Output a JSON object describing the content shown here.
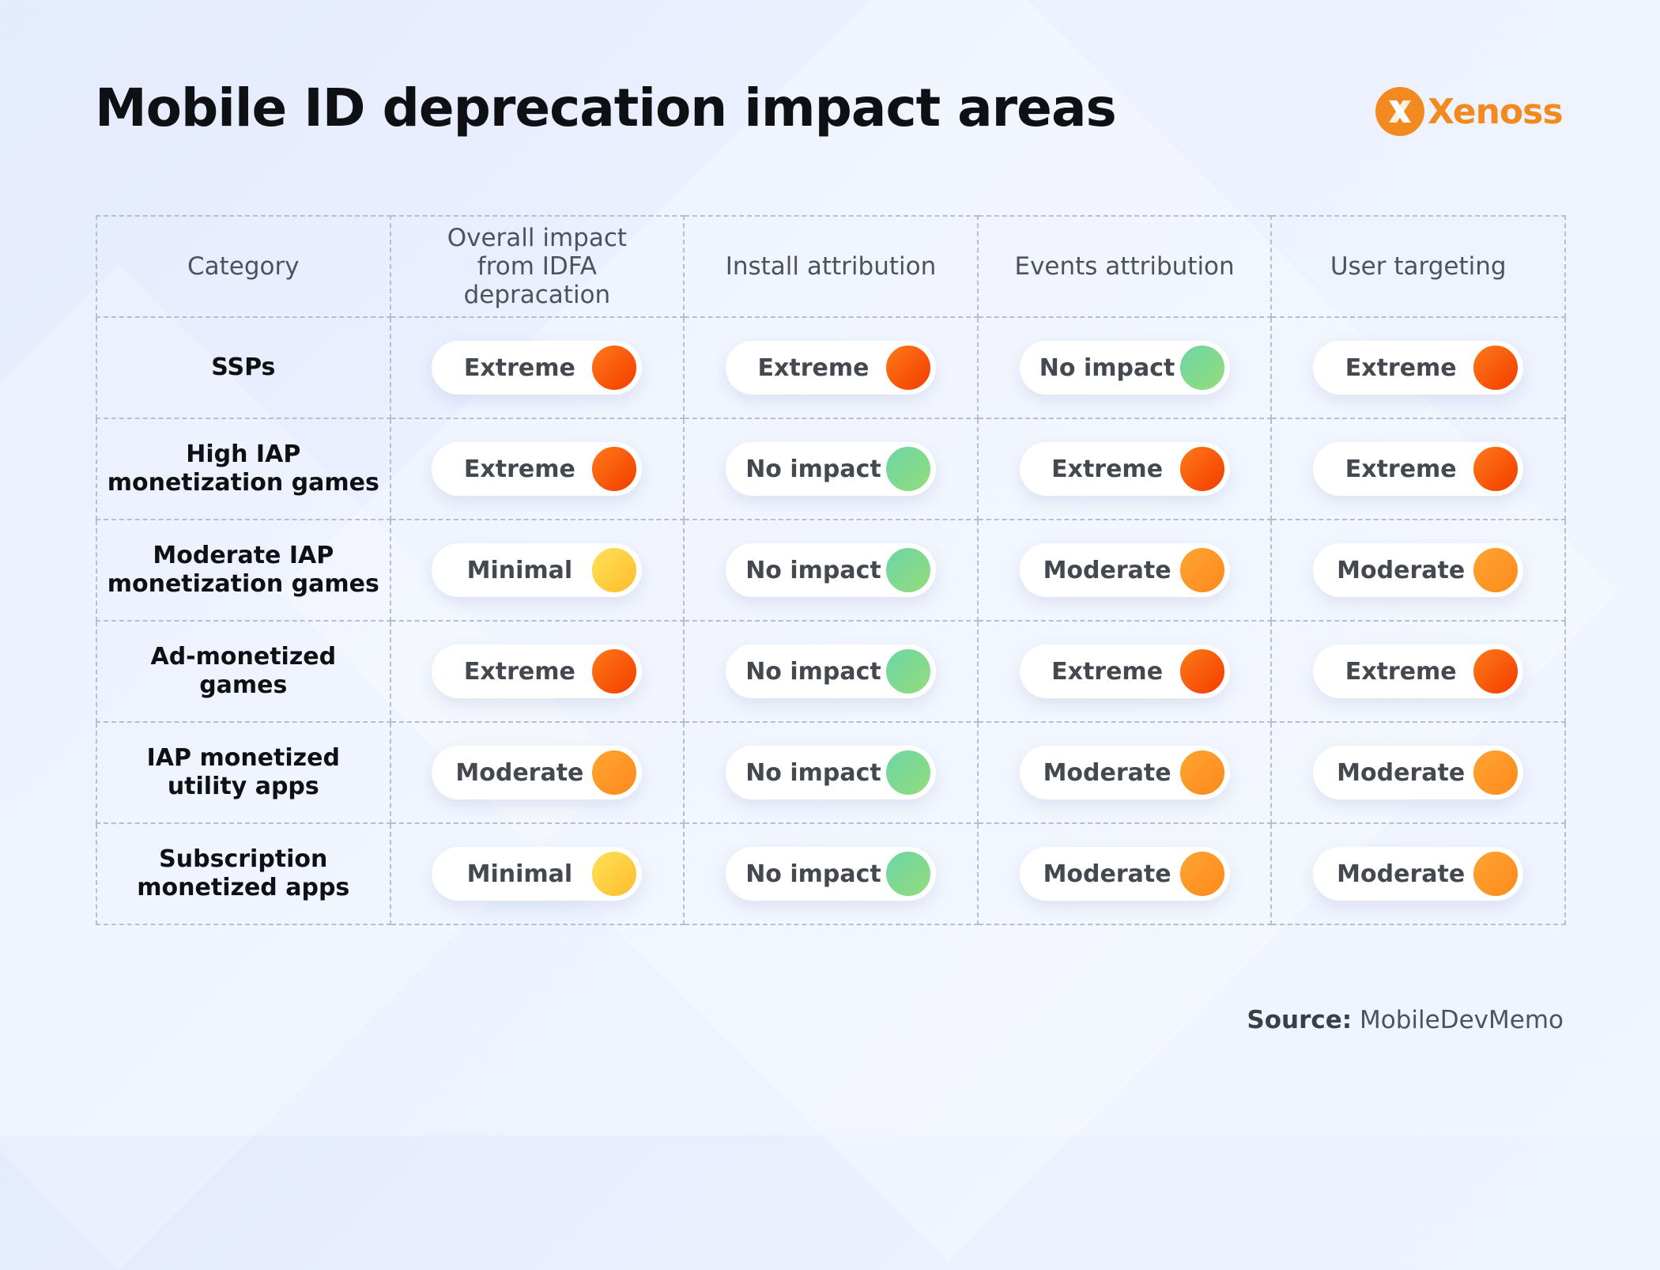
{
  "title": "Mobile ID deprecation impact areas",
  "logo": {
    "text": "Xenoss",
    "icon": "xenoss-logo-icon",
    "color": "#f28a1f"
  },
  "levels": {
    "Extreme": {
      "gradient": [
        "#ff7a18",
        "#f23c00"
      ]
    },
    "No impact": {
      "gradient": [
        "#6cd5a6",
        "#93dd7a"
      ]
    },
    "Minimal": {
      "gradient": [
        "#ffe15a",
        "#fdbd2a"
      ]
    },
    "Moderate": {
      "gradient": [
        "#ffa432",
        "#fd8a1b"
      ]
    }
  },
  "chart_data": {
    "type": "table",
    "columns": [
      "Category",
      "Overall impact from IDFA depracation",
      "Install attribution",
      "Events attribution",
      "User targeting"
    ],
    "rows": [
      {
        "category": "SSPs",
        "values": [
          "Extreme",
          "Extreme",
          "No impact",
          "Extreme"
        ]
      },
      {
        "category": "High IAP monetization games",
        "values": [
          "Extreme",
          "No impact",
          "Extreme",
          "Extreme"
        ]
      },
      {
        "category": "Moderate IAP monetization games",
        "values": [
          "Minimal",
          "No impact",
          "Moderate",
          "Moderate"
        ]
      },
      {
        "category": "Ad-monetized games",
        "values": [
          "Extreme",
          "No impact",
          "Extreme",
          "Extreme"
        ]
      },
      {
        "category": "IAP monetized utility apps",
        "values": [
          "Moderate",
          "No impact",
          "Moderate",
          "Moderate"
        ]
      },
      {
        "category": "Subscription monetized apps",
        "values": [
          "Minimal",
          "No impact",
          "Moderate",
          "Moderate"
        ]
      }
    ]
  },
  "source": {
    "label": "Source:",
    "value": "MobileDevMemo"
  }
}
